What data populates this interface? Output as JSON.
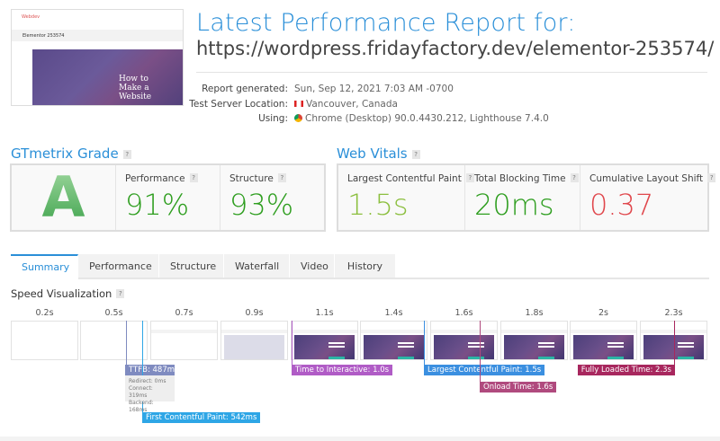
{
  "thumbnail": {
    "brand": "Webdev",
    "site_title": "Elementor 253574",
    "hero_text": "How to Make a Website"
  },
  "header": {
    "title": "Latest Performance Report for:",
    "url": "https://wordpress.fridayfactory.dev/elementor-253574/"
  },
  "report_info": [
    {
      "label": "Report generated:",
      "value": "Sun, Sep 12, 2021 7:03 AM -0700"
    },
    {
      "label": "Test Server Location:",
      "value": "Vancouver, Canada",
      "icon": "canada-flag-icon"
    },
    {
      "label": "Using:",
      "value": "Chrome (Desktop) 90.0.4430.212, Lighthouse 7.4.0",
      "icon": "chrome-icon"
    }
  ],
  "grade": {
    "heading": "GTmetrix Grade",
    "help": "?",
    "letter": "A",
    "metrics": [
      {
        "label": "Performance",
        "value": "91%",
        "color": "#2e9e1f"
      },
      {
        "label": "Structure",
        "value": "93%",
        "color": "#2e9e1f"
      }
    ]
  },
  "web_vitals": {
    "heading": "Web Vitals",
    "help": "?",
    "metrics": [
      {
        "label": "Largest Contentful Paint",
        "value": "1.5s",
        "color": "#8cbf3f"
      },
      {
        "label": "Total Blocking Time",
        "value": "20ms",
        "color": "#2e9e1f"
      },
      {
        "label": "Cumulative Layout Shift",
        "value": "0.37",
        "color": "#e0474c"
      }
    ]
  },
  "tabs": [
    {
      "label": "Summary",
      "active": true
    },
    {
      "label": "Performance"
    },
    {
      "label": "Structure"
    },
    {
      "label": "Waterfall"
    },
    {
      "label": "Video"
    },
    {
      "label": "History"
    }
  ],
  "speed_visualization": {
    "heading": "Speed Visualization",
    "help": "?",
    "frames": [
      "0.2s",
      "0.5s",
      "0.7s",
      "0.9s",
      "1.1s",
      "1.4s",
      "1.6s",
      "1.8s",
      "2s",
      "2.3s"
    ],
    "markers": [
      {
        "label": "TTFB: 487ms",
        "color": "#7f8bc0"
      },
      {
        "label": "First Contentful Paint: 542ms",
        "color": "#2ea6e6"
      },
      {
        "label": "Time to Interactive: 1.0s",
        "color": "#b05cc6"
      },
      {
        "label": "Largest Contentful Paint: 1.5s",
        "color": "#3b8fe0"
      },
      {
        "label": "Onload Time: 1.6s",
        "color": "#b04a7e"
      },
      {
        "label": "Fully Loaded Time: 2.3s",
        "color": "#a8275e"
      }
    ],
    "ttfb_breakdown": [
      "Redirect: 0ms",
      "Connect: 319ms",
      "Backend: 168ms"
    ]
  }
}
